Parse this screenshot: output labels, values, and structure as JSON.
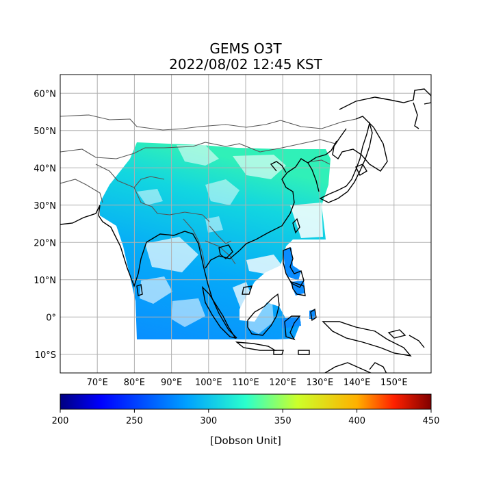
{
  "title": "GEMS O3T",
  "subtitle": "2022/08/02 12:45 KST",
  "map": {
    "lon_range": [
      60,
      160
    ],
    "lat_range": [
      -15,
      65
    ],
    "lat_ticks": [
      "60°N",
      "50°N",
      "40°N",
      "30°N",
      "20°N",
      "10°N",
      "0°",
      "10°S"
    ],
    "lat_values": [
      60,
      50,
      40,
      30,
      20,
      10,
      0,
      -10
    ],
    "lon_ticks": [
      "70°E",
      "80°E",
      "90°E",
      "100°E",
      "110°E",
      "120°E",
      "130°E",
      "140°E",
      "150°E"
    ],
    "lon_values": [
      70,
      80,
      90,
      100,
      110,
      120,
      130,
      140,
      150
    ],
    "grid": true
  },
  "colorbar": {
    "label": "[Dobson Unit]",
    "min": 200,
    "max": 450,
    "ticks": [
      "200",
      "250",
      "300",
      "350",
      "400",
      "450"
    ],
    "tick_values": [
      200,
      250,
      300,
      350,
      400,
      450
    ],
    "colormap": "jet"
  },
  "colors": {
    "data_low": "#0a8cff",
    "data_mid": "#00b7f5",
    "data_high": "#2ef0b8",
    "coast": "#000000",
    "border": "#555555",
    "grid": "#b0b0b0"
  }
}
